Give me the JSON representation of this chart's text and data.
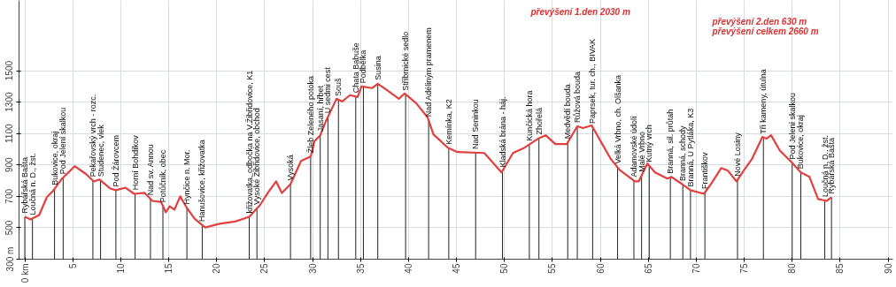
{
  "chart_data": {
    "type": "line",
    "x": [
      0,
      0.6,
      1.5,
      2.3,
      3.0,
      3.8,
      5.2,
      6.4,
      7.2,
      7.8,
      8.9,
      9.5,
      10.5,
      11.4,
      12.5,
      13.3,
      14.2,
      14.7,
      15.1,
      15.6,
      16.2,
      16.9,
      17.7,
      18.8,
      20.2,
      22.0,
      23.4,
      24.5,
      25.4,
      26.2,
      26.8,
      27.7,
      28.8,
      29.8,
      30.2,
      30.8,
      31.4,
      32.5,
      33.1,
      33.9,
      34.7,
      35.1,
      36.2,
      36.8,
      37.7,
      39.0,
      39.6,
      40.8,
      42.0,
      42.6,
      44.1,
      45.1,
      47.9,
      49.7,
      50.9,
      52.1,
      53.5,
      54.3,
      55.3,
      56.5,
      57.6,
      58.2,
      59.1,
      60.2,
      61.1,
      62.0,
      63.6,
      64.0,
      64.9,
      65.7,
      67.0,
      67.4,
      68.5,
      69.4,
      70.8,
      71.6,
      72.6,
      73.3,
      74.2,
      75.0,
      75.8,
      76.9,
      77.3,
      77.8,
      78.7,
      79.9,
      80.9,
      81.8,
      82.7,
      83.6,
      84.1
    ],
    "series": [
      {
        "color": "#e2403e",
        "values": [
          570,
          553,
          581,
          695,
          739,
          807,
          892,
          841,
          795,
          807,
          750,
          739,
          755,
          716,
          722,
          671,
          665,
          598,
          637,
          615,
          700,
          626,
          558,
          502,
          524,
          541,
          570,
          643,
          728,
          795,
          722,
          778,
          925,
          954,
          1050,
          1089,
          1180,
          1321,
          1304,
          1344,
          1332,
          1400,
          1389,
          1417,
          1378,
          1321,
          1355,
          1293,
          1202,
          1095,
          1010,
          982,
          976,
          852,
          976,
          1010,
          1067,
          1089,
          1033,
          1033,
          1146,
          1135,
          1152,
          1033,
          937,
          869,
          795,
          795,
          909,
          852,
          813,
          824,
          779,
          739,
          716,
          784,
          880,
          863,
          795,
          869,
          937,
          1078,
          1067,
          1089,
          993,
          920,
          852,
          824,
          683,
          671,
          694
        ]
      }
    ],
    "xlim": [
      -0.6,
      90.5
    ],
    "ylim": [
      300,
      1947
    ],
    "xticks": [
      {
        "value": 0,
        "label": "0 km"
      },
      5,
      10,
      15,
      20,
      25,
      30,
      35,
      40,
      45,
      50,
      55,
      60,
      65,
      70,
      75,
      80,
      85,
      90
    ],
    "yticks": [
      {
        "value": 300,
        "label": "300 m"
      },
      500,
      700,
      900,
      1100,
      1300,
      1500
    ],
    "grid": true,
    "annotations": [
      "převýšení 1.den 2030 m",
      "převýšení 2.den 630 m",
      "převýšení celkem 2660 m",
      {
        "text": "Rybářská Bašta",
        "x": 0,
        "y": 570
      },
      {
        "text": "Loučná n. D., žst.",
        "x": 0.8,
        "y": 559
      },
      {
        "text": "Bukovice, okraj",
        "x": 3.1,
        "y": 748
      },
      {
        "text": "Pod Jelení skalkou",
        "x": 4.0,
        "y": 819
      },
      {
        "text": "Pekařovský vrch - rozc.",
        "x": 7.1,
        "y": 801
      },
      {
        "text": "Studenec, vlek",
        "x": 7.9,
        "y": 802
      },
      {
        "text": "Pod Žárovcem",
        "x": 9.5,
        "y": 739
      },
      {
        "text": "Horní Bohdíkov",
        "x": 11.5,
        "y": 717
      },
      {
        "text": "Nad sv. Annou",
        "x": 13.1,
        "y": 684
      },
      {
        "text": "Potůčník, obec",
        "x": 14.4,
        "y": 638
      },
      {
        "text": "Hynčice n. Mor.",
        "x": 16.9,
        "y": 626
      },
      {
        "text": "Hanušovice, křižovatka",
        "x": 18.5,
        "y": 517
      },
      {
        "text": "křižovatka, odbočka na V.Žibřidovice, K1",
        "x": 23.4,
        "y": 570
      },
      {
        "text": "Vysoké Žibřidovice, obchod",
        "x": 24.2,
        "y": 623
      },
      {
        "text": "Vysoká",
        "x": 27.7,
        "y": 778
      },
      {
        "text": "Žleb Zeleného potoka",
        "x": 29.8,
        "y": 954
      },
      {
        "text": "Jasaní, hřbet",
        "x": 30.8,
        "y": 1089
      },
      {
        "text": "U sedmi cest",
        "x": 31.6,
        "y": 1206
      },
      {
        "text": "Souš",
        "x": 32.7,
        "y": 1315
      },
      {
        "text": "Chata Babuše",
        "x": 34.5,
        "y": 1335
      },
      {
        "text": "Podbělka",
        "x": 35.3,
        "y": 1398
      },
      {
        "text": "Susina",
        "x": 36.8,
        "y": 1417
      },
      {
        "text": "Stříbrnické sedlo",
        "x": 39.7,
        "y": 1350
      },
      {
        "text": "Nad Adéliným pramenem",
        "x": 42.1,
        "y": 1184
      },
      {
        "text": "Kemínka, K2",
        "x": 44.2,
        "y": 1007
      },
      {
        "text": "Nad Seninkou",
        "x": 47.0,
        "y": 978
      },
      {
        "text": "Kladská brána - háj.",
        "x": 49.8,
        "y": 862
      },
      {
        "text": "Kunčická hora",
        "x": 52.6,
        "y": 1030
      },
      {
        "text": "Zhořelá",
        "x": 53.6,
        "y": 1070
      },
      {
        "text": "Medvědí bouda",
        "x": 56.6,
        "y": 1043
      },
      {
        "text": "Růžová bouda",
        "x": 57.6,
        "y": 1146
      },
      {
        "text": "Paprsek, tur. ch., BIVAK",
        "x": 59.2,
        "y": 1141
      },
      {
        "text": "Velká Vrbno, ch. Olšanka",
        "x": 61.8,
        "y": 884
      },
      {
        "text": "Adamovské údolí",
        "x": 63.5,
        "y": 800
      },
      {
        "text": "Malé Vrbno",
        "x": 64.3,
        "y": 833
      },
      {
        "text": "Kutný vrch",
        "x": 65.1,
        "y": 895
      },
      {
        "text": "Branná, sil. průtah",
        "x": 67.3,
        "y": 821
      },
      {
        "text": "Branná, schody",
        "x": 68.6,
        "y": 775
      },
      {
        "text": "Branná, U Pytláka, K3",
        "x": 69.4,
        "y": 739
      },
      {
        "text": "Františkov",
        "x": 70.9,
        "y": 725
      },
      {
        "text": "Nové Losiny",
        "x": 74.3,
        "y": 804
      },
      {
        "text": "Tři kameny, útulna",
        "x": 77.0,
        "y": 1075
      },
      {
        "text": "Pod Jelení skalkou",
        "x": 80.0,
        "y": 913
      },
      {
        "text": "Bukovice, okraj",
        "x": 80.9,
        "y": 852
      },
      {
        "text": "Loučná n. D., žst.",
        "x": 83.4,
        "y": 674
      },
      {
        "text": "Rybářská Bašta",
        "x": 84.1,
        "y": 694
      }
    ]
  }
}
